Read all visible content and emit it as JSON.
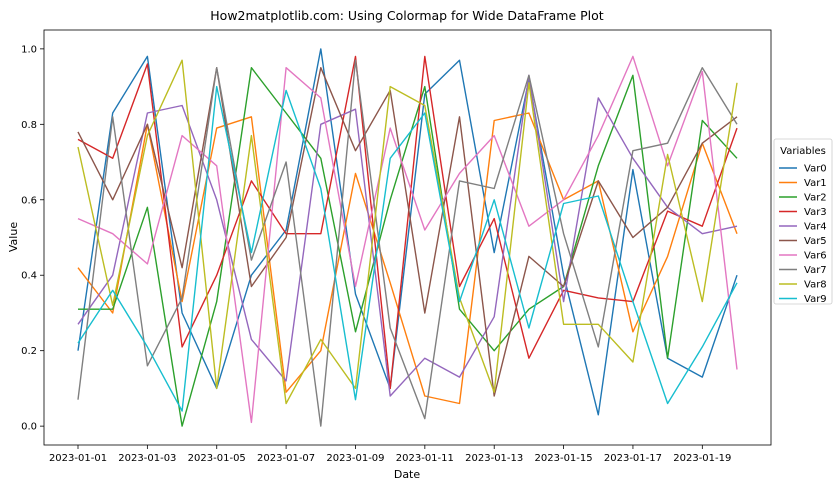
{
  "chart_data": {
    "type": "line",
    "title": "How2matplotlib.com: Using Colormap for Wide DataFrame Plot",
    "xlabel": "Date",
    "ylabel": "Value",
    "x": [
      "2023-01-01",
      "2023-01-02",
      "2023-01-03",
      "2023-01-04",
      "2023-01-05",
      "2023-01-06",
      "2023-01-07",
      "2023-01-08",
      "2023-01-09",
      "2023-01-10",
      "2023-01-11",
      "2023-01-12",
      "2023-01-13",
      "2023-01-14",
      "2023-01-15",
      "2023-01-16",
      "2023-01-17",
      "2023-01-18",
      "2023-01-19",
      "2023-01-20"
    ],
    "xticks": [
      "2023-01-01",
      "2023-01-03",
      "2023-01-05",
      "2023-01-07",
      "2023-01-09",
      "2023-01-11",
      "2023-01-13",
      "2023-01-15",
      "2023-01-17",
      "2023-01-19"
    ],
    "yticks": [
      "0.0",
      "0.2",
      "0.4",
      "0.6",
      "0.8",
      "1.0"
    ],
    "ylim": [
      -0.05,
      1.05
    ],
    "grid": false,
    "legend": {
      "title": "Variables",
      "placement": "right-outside"
    },
    "series": [
      {
        "name": "Var0",
        "color": "#1f77b4",
        "values": [
          0.2,
          0.83,
          0.98,
          0.3,
          0.1,
          0.4,
          0.52,
          1.0,
          0.35,
          0.1,
          0.88,
          0.97,
          0.46,
          0.92,
          0.4,
          0.03,
          0.68,
          0.18,
          0.13,
          0.4
        ]
      },
      {
        "name": "Var1",
        "color": "#ff7f0e",
        "values": [
          0.42,
          0.3,
          0.8,
          0.33,
          0.79,
          0.82,
          0.09,
          0.2,
          0.67,
          0.38,
          0.08,
          0.06,
          0.81,
          0.83,
          0.6,
          0.65,
          0.25,
          0.45,
          0.75,
          0.51
        ]
      },
      {
        "name": "Var2",
        "color": "#2ca02c",
        "values": [
          0.31,
          0.31,
          0.58,
          0.0,
          0.33,
          0.95,
          0.83,
          0.71,
          0.25,
          0.6,
          0.9,
          0.31,
          0.2,
          0.31,
          0.37,
          0.69,
          0.93,
          0.18,
          0.81,
          0.71
        ]
      },
      {
        "name": "Var3",
        "color": "#d62728",
        "values": [
          0.76,
          0.71,
          0.96,
          0.21,
          0.4,
          0.65,
          0.51,
          0.51,
          0.98,
          0.1,
          0.98,
          0.37,
          0.55,
          0.18,
          0.36,
          0.34,
          0.33,
          0.57,
          0.53,
          0.79
        ]
      },
      {
        "name": "Var4",
        "color": "#9467bd",
        "values": [
          0.27,
          0.4,
          0.83,
          0.85,
          0.6,
          0.23,
          0.12,
          0.8,
          0.84,
          0.08,
          0.18,
          0.13,
          0.29,
          0.93,
          0.33,
          0.87,
          0.71,
          0.58,
          0.51,
          0.53
        ]
      },
      {
        "name": "Var5",
        "color": "#8c564b",
        "values": [
          0.78,
          0.6,
          0.8,
          0.42,
          0.95,
          0.37,
          0.5,
          0.95,
          0.73,
          0.89,
          0.3,
          0.82,
          0.08,
          0.45,
          0.37,
          0.65,
          0.5,
          0.58,
          0.75,
          0.82
        ]
      },
      {
        "name": "Var6",
        "color": "#e377c2",
        "values": [
          0.55,
          0.51,
          0.43,
          0.77,
          0.69,
          0.01,
          0.95,
          0.87,
          0.37,
          0.79,
          0.52,
          0.67,
          0.77,
          0.53,
          0.6,
          0.77,
          0.98,
          0.69,
          0.94,
          0.15
        ]
      },
      {
        "name": "Var7",
        "color": "#7f7f7f",
        "values": [
          0.07,
          0.82,
          0.16,
          0.34,
          0.95,
          0.44,
          0.7,
          0.0,
          0.97,
          0.26,
          0.02,
          0.65,
          0.63,
          0.93,
          0.51,
          0.21,
          0.73,
          0.75,
          0.95,
          0.8
        ]
      },
      {
        "name": "Var8",
        "color": "#bcbd22",
        "values": [
          0.74,
          0.32,
          0.77,
          0.97,
          0.1,
          0.77,
          0.06,
          0.23,
          0.1,
          0.9,
          0.85,
          0.34,
          0.09,
          0.91,
          0.27,
          0.27,
          0.17,
          0.72,
          0.33,
          0.91
        ]
      },
      {
        "name": "Var9",
        "color": "#17becf",
        "values": [
          0.22,
          0.36,
          0.21,
          0.04,
          0.9,
          0.46,
          0.89,
          0.63,
          0.07,
          0.71,
          0.83,
          0.33,
          0.6,
          0.26,
          0.59,
          0.61,
          0.33,
          0.06,
          0.21,
          0.38
        ]
      }
    ]
  }
}
